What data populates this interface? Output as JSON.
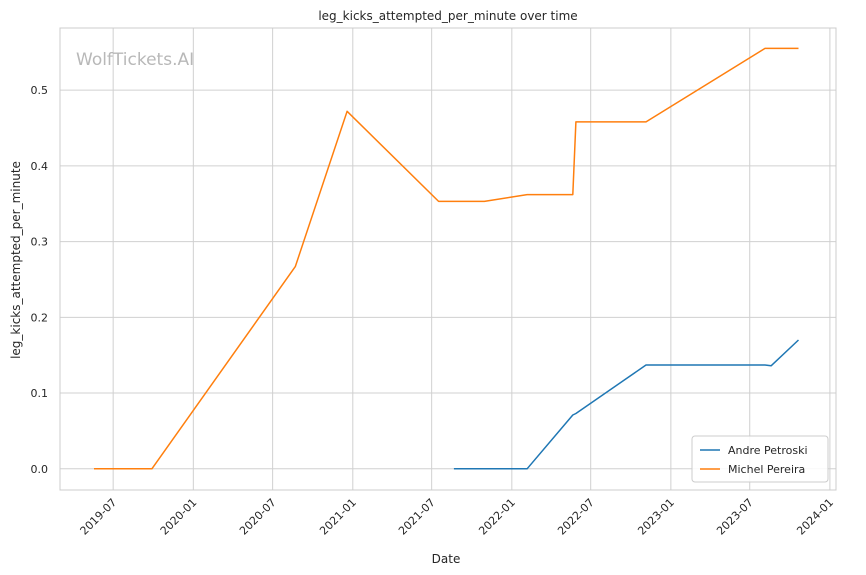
{
  "watermark": "WolfTickets.AI",
  "chart_data": {
    "type": "line",
    "title": "leg_kicks_attempted_per_minute over time",
    "xlabel": "Date",
    "ylabel": "leg_kicks_attempted_per_minute",
    "x_ticks": [
      "2019-07",
      "2020-01",
      "2020-07",
      "2021-01",
      "2021-07",
      "2022-01",
      "2022-07",
      "2023-01",
      "2023-07",
      "2024-01"
    ],
    "y_ticks": [
      "0.0",
      "0.1",
      "0.2",
      "0.3",
      "0.4",
      "0.5"
    ],
    "ylim": [
      -0.028,
      0.582
    ],
    "xlim": [
      "2019-03-01",
      "2024-01-15"
    ],
    "grid": true,
    "legend_position": "lower right",
    "series": [
      {
        "name": "Andre Petroski",
        "color": "#1f77b4",
        "points": [
          [
            "2021-08-21",
            0.0
          ],
          [
            "2022-02-05",
            0.0
          ],
          [
            "2022-05-21",
            0.071
          ],
          [
            "2022-05-28",
            0.073
          ],
          [
            "2022-11-05",
            0.137
          ],
          [
            "2023-08-05",
            0.137
          ],
          [
            "2023-08-19",
            0.136
          ],
          [
            "2023-10-21",
            0.17
          ]
        ]
      },
      {
        "name": "Michel Pereira",
        "color": "#ff7f0e",
        "points": [
          [
            "2019-05-18",
            0.0
          ],
          [
            "2019-09-28",
            0.0
          ],
          [
            "2020-08-22",
            0.267
          ],
          [
            "2020-12-19",
            0.472
          ],
          [
            "2021-07-17",
            0.353
          ],
          [
            "2021-10-30",
            0.353
          ],
          [
            "2022-02-05",
            0.362
          ],
          [
            "2022-05-21",
            0.362
          ],
          [
            "2022-05-28",
            0.458
          ],
          [
            "2022-11-05",
            0.458
          ],
          [
            "2023-08-05",
            0.555
          ],
          [
            "2023-10-21",
            0.555
          ]
        ]
      }
    ]
  }
}
